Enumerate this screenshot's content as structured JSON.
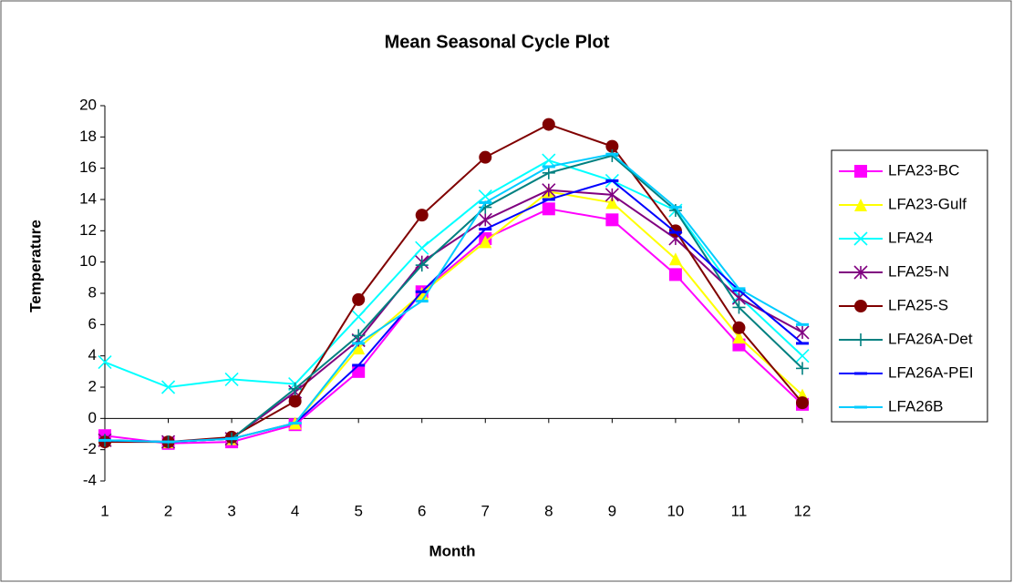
{
  "chart_data": {
    "type": "line",
    "title": "Mean Seasonal Cycle Plot",
    "x_label": "Month",
    "y_label": "Temperature",
    "x": [
      1,
      2,
      3,
      4,
      5,
      6,
      7,
      8,
      9,
      10,
      11,
      12
    ],
    "xlim": [
      1,
      12
    ],
    "xticks": [
      1,
      2,
      3,
      4,
      5,
      6,
      7,
      8,
      9,
      10,
      11,
      12
    ],
    "ylim": [
      -4,
      20
    ],
    "yticks": [
      -4,
      -2,
      0,
      2,
      4,
      6,
      8,
      10,
      12,
      14,
      16,
      18,
      20
    ],
    "grid": false,
    "legend": "right",
    "series": [
      {
        "name": "LFA23-BC",
        "color": "#ff00ff",
        "marker": "square",
        "values": [
          -1.1,
          -1.6,
          -1.5,
          -0.4,
          3.0,
          8.1,
          11.5,
          13.4,
          12.7,
          9.2,
          4.7,
          0.9
        ]
      },
      {
        "name": "LFA23-Gulf",
        "color": "#ffff00",
        "marker": "triangle",
        "values": [
          -1.4,
          -1.5,
          -1.3,
          -0.3,
          4.5,
          8.0,
          11.3,
          14.5,
          13.8,
          10.2,
          5.2,
          1.5
        ]
      },
      {
        "name": "LFA24",
        "color": "#00ffff",
        "marker": "x",
        "values": [
          3.6,
          2.0,
          2.5,
          2.2,
          6.5,
          10.9,
          14.2,
          16.5,
          15.2,
          13.3,
          7.8,
          4.0
        ]
      },
      {
        "name": "LFA25-N",
        "color": "#800080",
        "marker": "star",
        "values": [
          -1.4,
          -1.5,
          -1.3,
          1.7,
          5.0,
          10.0,
          12.7,
          14.6,
          14.3,
          11.5,
          7.7,
          5.5
        ]
      },
      {
        "name": "LFA25-S",
        "color": "#800000",
        "marker": "circle",
        "values": [
          -1.5,
          -1.5,
          -1.2,
          1.1,
          7.6,
          13.0,
          16.7,
          18.8,
          17.4,
          12.0,
          5.8,
          1.0
        ]
      },
      {
        "name": "LFA26A-Det",
        "color": "#008080",
        "marker": "plus",
        "values": [
          -1.4,
          -1.5,
          -1.3,
          1.9,
          5.3,
          9.8,
          13.5,
          15.7,
          16.8,
          13.3,
          7.1,
          3.2
        ]
      },
      {
        "name": "LFA26A-PEI",
        "color": "#0000ff",
        "marker": "dash",
        "values": [
          -1.4,
          -1.5,
          -1.3,
          -0.3,
          3.4,
          8.1,
          12.1,
          14.0,
          15.2,
          11.9,
          8.2,
          4.8
        ]
      },
      {
        "name": "LFA26B",
        "color": "#00ccff",
        "marker": "dash",
        "values": [
          -1.4,
          -1.5,
          -1.3,
          -0.3,
          4.8,
          7.5,
          13.8,
          16.1,
          16.9,
          13.5,
          8.3,
          6.0
        ]
      }
    ]
  }
}
